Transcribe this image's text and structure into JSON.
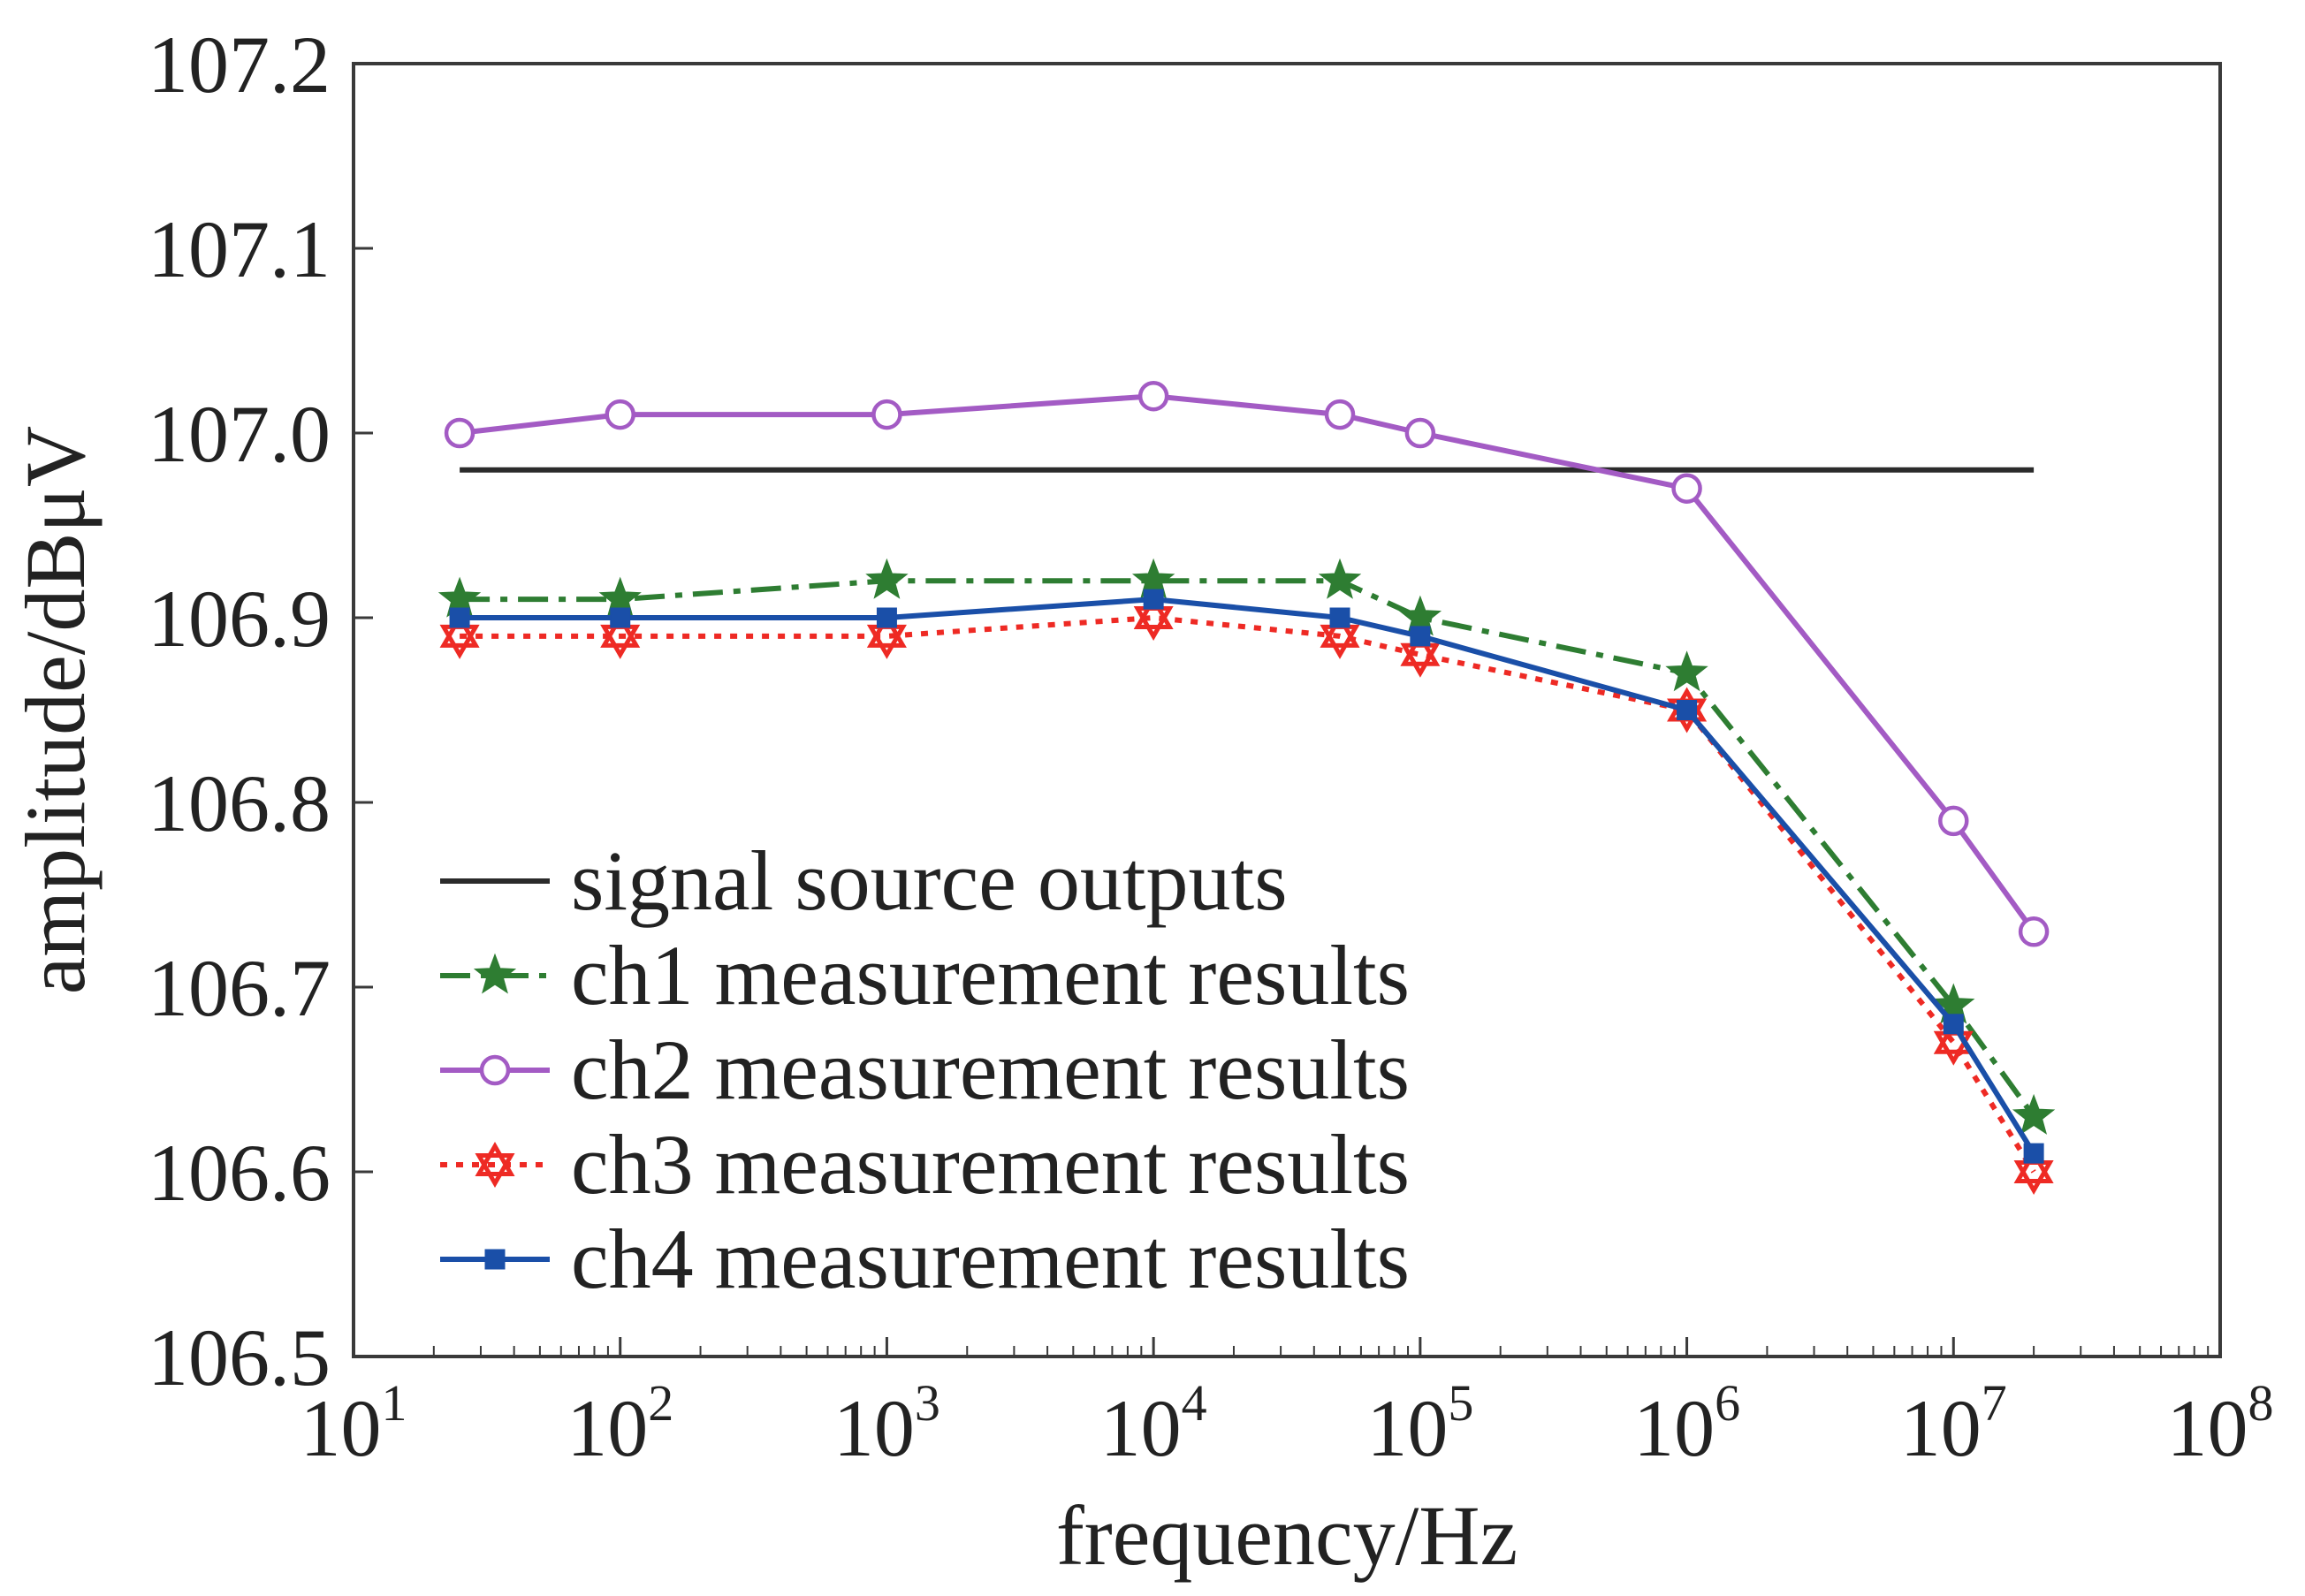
{
  "chart_data": {
    "type": "line",
    "title": "",
    "xlabel": "frequency/Hz",
    "ylabel": "amplitude/dBμV",
    "xscale": "log",
    "xlim": [
      10,
      100000000
    ],
    "ylim": [
      106.5,
      107.2
    ],
    "x_ticks": [
      {
        "base": "10",
        "exp": "1"
      },
      {
        "base": "10",
        "exp": "2"
      },
      {
        "base": "10",
        "exp": "3"
      },
      {
        "base": "10",
        "exp": "4"
      },
      {
        "base": "10",
        "exp": "5"
      },
      {
        "base": "10",
        "exp": "6"
      },
      {
        "base": "10",
        "exp": "7"
      },
      {
        "base": "10",
        "exp": "8"
      }
    ],
    "y_ticks": [
      "106.5",
      "106.6",
      "106.7",
      "106.8",
      "106.9",
      "107.0",
      "107.1",
      "107.2"
    ],
    "grid": false,
    "legend_position": "bottom-left",
    "x": [
      25,
      100,
      1000,
      10000,
      50000,
      100000,
      1000000,
      10000000,
      20000000
    ],
    "series": [
      {
        "name": "signal source outputs",
        "color": "#2b2b2b",
        "marker": "none",
        "line_style": "solid",
        "x": [
          25,
          20000000
        ],
        "values": [
          106.98,
          106.98
        ]
      },
      {
        "name": "ch1 measurement results",
        "color": "#2e7d32",
        "marker": "star",
        "line_style": "dashdot",
        "values": [
          106.91,
          106.91,
          106.92,
          106.92,
          106.92,
          106.9,
          106.87,
          106.69,
          106.63
        ]
      },
      {
        "name": "ch2 measurement results",
        "color": "#a35bc4",
        "marker": "circle",
        "line_style": "solid",
        "values": [
          107.0,
          107.01,
          107.01,
          107.02,
          107.01,
          107.0,
          106.97,
          106.79,
          106.73
        ]
      },
      {
        "name": "ch3 measurement results",
        "color": "#ee2a24",
        "marker": "hexagram",
        "line_style": "dotted",
        "values": [
          106.89,
          106.89,
          106.89,
          106.9,
          106.89,
          106.88,
          106.85,
          106.67,
          106.6
        ]
      },
      {
        "name": "ch4 measurement results",
        "color": "#1a4fa8",
        "marker": "square",
        "line_style": "solid",
        "values": [
          106.9,
          106.9,
          106.9,
          106.91,
          106.9,
          106.89,
          106.85,
          106.68,
          106.61
        ]
      }
    ]
  }
}
